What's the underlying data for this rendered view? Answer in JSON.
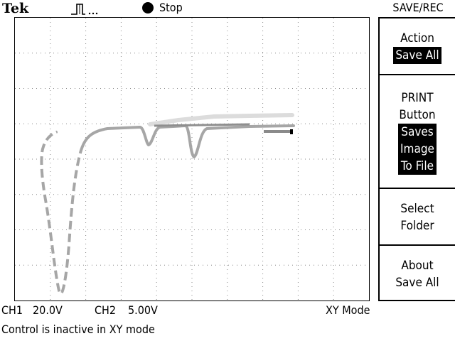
{
  "header": {
    "brand": "Tek",
    "trigger_icon": "pulse-icon",
    "acquisition_state": "Stop",
    "menu_title": "SAVE/REC"
  },
  "side_menu": {
    "action": {
      "label": "Action",
      "value": "Save All"
    },
    "print_button": {
      "label_line1": "PRINT",
      "label_line2": "Button",
      "value_lines": [
        "Saves",
        "Image",
        "To File"
      ]
    },
    "select_folder": {
      "line1": "Select",
      "line2": "Folder"
    },
    "about": {
      "line1": "About",
      "line2": "Save All"
    }
  },
  "readout": {
    "ch1_label": "CH1",
    "ch1_scale": "20.0V",
    "ch2_label": "CH2",
    "ch2_scale": "5.00V",
    "mode": "XY Mode"
  },
  "status_message": "Control is inactive in XY mode",
  "colors": {
    "trace_ref": "#d9d9d9",
    "trace_main": "#a6a6a6",
    "trace_overlay": "#8a8a8a",
    "graticule": "#888888"
  }
}
